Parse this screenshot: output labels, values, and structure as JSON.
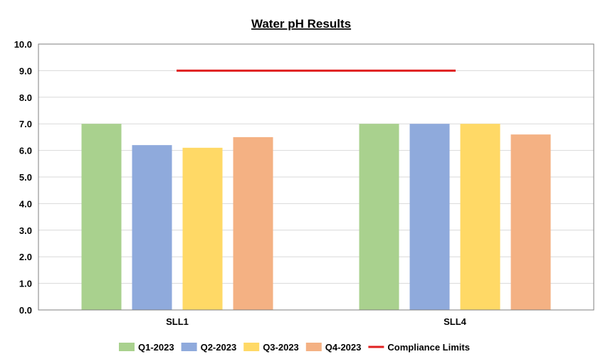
{
  "chart_data": {
    "type": "bar",
    "title": "Water pH Results",
    "xlabel": "",
    "ylabel": "",
    "ylim": [
      0,
      10
    ],
    "yticks": [
      "0.0",
      "1.0",
      "2.0",
      "3.0",
      "4.0",
      "5.0",
      "6.0",
      "7.0",
      "8.0",
      "9.0",
      "10.0"
    ],
    "categories": [
      "SLL1",
      "SLL4"
    ],
    "series": [
      {
        "name": "Q1-2023",
        "color": "#a9d18e",
        "values": [
          7.0,
          7.0
        ]
      },
      {
        "name": "Q2-2023",
        "color": "#8faadc",
        "values": [
          6.2,
          7.0
        ]
      },
      {
        "name": "Q3-2023",
        "color": "#ffd966",
        "values": [
          6.1,
          7.0
        ]
      },
      {
        "name": "Q4-2023",
        "color": "#f4b183",
        "values": [
          6.5,
          6.6
        ]
      }
    ],
    "reference_line": {
      "name": "Compliance Limits",
      "color": "#e02020",
      "value": 9.0
    },
    "grid": true,
    "legend_position": "bottom"
  }
}
